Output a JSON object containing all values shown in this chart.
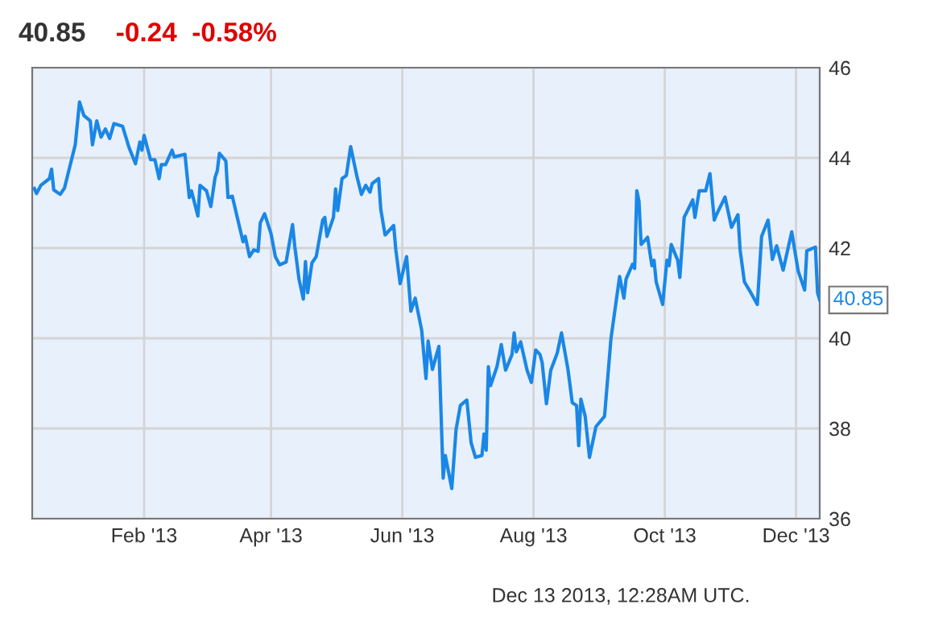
{
  "chart_data": {
    "type": "line",
    "title": "40.85",
    "subtitle": "-0.24  -0.58%",
    "x": [
      "2012-12-12",
      "2012-12-13",
      "2012-12-15",
      "2012-12-19",
      "2012-12-20",
      "2012-12-21",
      "2012-12-24",
      "2012-12-26",
      "2012-12-31",
      "2013-01-02",
      "2013-01-04",
      "2013-01-07",
      "2013-01-08",
      "2013-01-10",
      "2013-01-12",
      "2013-01-14",
      "2013-01-16",
      "2013-01-18",
      "2013-01-22",
      "2013-01-25",
      "2013-01-28",
      "2013-01-30",
      "2013-01-31",
      "2013-02-01",
      "2013-02-04",
      "2013-02-06",
      "2013-02-08",
      "2013-02-09",
      "2013-02-11",
      "2013-02-14",
      "2013-02-15",
      "2013-02-20",
      "2013-02-22",
      "2013-02-23",
      "2013-02-26",
      "2013-02-27",
      "2013-03-02",
      "2013-03-04",
      "2013-03-06",
      "2013-03-07",
      "2013-03-08",
      "2013-03-11",
      "2013-03-12",
      "2013-03-14",
      "2013-03-16",
      "2013-03-19",
      "2013-03-20",
      "2013-03-22",
      "2013-03-24",
      "2013-03-26",
      "2013-03-27",
      "2013-03-29",
      "2013-04-01",
      "2013-04-03",
      "2013-04-05",
      "2013-04-08",
      "2013-04-11",
      "2013-04-12",
      "2013-04-14",
      "2013-04-16",
      "2013-04-17",
      "2013-04-18",
      "2013-04-20",
      "2013-04-22",
      "2013-04-25",
      "2013-04-26",
      "2013-04-27",
      "2013-04-30",
      "2013-05-01",
      "2013-05-02",
      "2013-05-04",
      "2013-05-06",
      "2013-05-08",
      "2013-05-11",
      "2013-05-13",
      "2013-05-15",
      "2013-05-17",
      "2013-05-18",
      "2013-05-21",
      "2013-05-22",
      "2013-05-24",
      "2013-05-28",
      "2013-05-29",
      "2013-05-31",
      "2013-06-02",
      "2013-06-03",
      "2013-06-05",
      "2013-06-07",
      "2013-06-10",
      "2013-06-12",
      "2013-06-13",
      "2013-06-15",
      "2013-06-18",
      "2013-06-20",
      "2013-06-21",
      "2013-06-24",
      "2013-06-26",
      "2013-06-28",
      "2013-07-01",
      "2013-07-03",
      "2013-07-05",
      "2013-07-08",
      "2013-07-09",
      "2013-07-10",
      "2013-07-11",
      "2013-07-12",
      "2013-07-15",
      "2013-07-17",
      "2013-07-19",
      "2013-07-22",
      "2013-07-23",
      "2013-07-24",
      "2013-07-26",
      "2013-07-29",
      "2013-07-31",
      "2013-08-02",
      "2013-08-04",
      "2013-08-05",
      "2013-08-07",
      "2013-08-09",
      "2013-08-12",
      "2013-08-14",
      "2013-08-17",
      "2013-08-19",
      "2013-08-21",
      "2013-08-22",
      "2013-08-23",
      "2013-08-25",
      "2013-08-27",
      "2013-08-30",
      "2013-09-03",
      "2013-09-06",
      "2013-09-10",
      "2013-09-12",
      "2013-09-13",
      "2013-09-16",
      "2013-09-17",
      "2013-09-18",
      "2013-09-19",
      "2013-09-20",
      "2013-09-23",
      "2013-09-25",
      "2013-09-26",
      "2013-09-27",
      "2013-09-30",
      "2013-10-02",
      "2013-10-03",
      "2013-10-04",
      "2013-10-07",
      "2013-10-08",
      "2013-10-10",
      "2013-10-14",
      "2013-10-15",
      "2013-10-17",
      "2013-10-20",
      "2013-10-22",
      "2013-10-24",
      "2013-10-25",
      "2013-10-29",
      "2013-11-01",
      "2013-11-04",
      "2013-11-05",
      "2013-11-07",
      "2013-11-10",
      "2013-11-13",
      "2013-11-15",
      "2013-11-18",
      "2013-11-20",
      "2013-11-22",
      "2013-11-25",
      "2013-11-29",
      "2013-12-02",
      "2013-12-05",
      "2013-12-06",
      "2013-12-10",
      "2013-12-11",
      "2013-12-12"
    ],
    "series": [
      {
        "color": "#1a87e6",
        "values": [
          43.32,
          43.21,
          43.39,
          43.54,
          43.75,
          43.29,
          43.19,
          43.33,
          44.29,
          45.24,
          44.94,
          44.82,
          44.29,
          44.82,
          44.46,
          44.64,
          44.43,
          44.76,
          44.7,
          44.23,
          43.87,
          44.35,
          44.17,
          44.5,
          43.96,
          43.96,
          43.54,
          43.85,
          43.85,
          44.17,
          44.02,
          44.08,
          43.12,
          43.27,
          42.71,
          43.39,
          43.27,
          42.92,
          43.57,
          43.71,
          44.1,
          43.93,
          43.12,
          43.15,
          42.74,
          42.14,
          42.26,
          41.81,
          41.96,
          41.93,
          42.56,
          42.76,
          42.32,
          41.81,
          41.63,
          41.69,
          42.52,
          42.05,
          41.31,
          40.87,
          41.7,
          41.01,
          41.67,
          41.81,
          42.62,
          42.68,
          42.26,
          42.68,
          43.31,
          42.83,
          43.54,
          43.61,
          44.25,
          43.57,
          43.19,
          43.39,
          43.24,
          43.43,
          43.54,
          42.86,
          42.29,
          42.5,
          41.96,
          41.21,
          41.61,
          41.81,
          40.6,
          40.89,
          40.18,
          39.11,
          39.94,
          39.31,
          39.82,
          36.9,
          37.4,
          36.67,
          37.98,
          38.51,
          38.63,
          37.68,
          37.36,
          37.4,
          37.88,
          37.52,
          39.37,
          38.95,
          39.37,
          39.86,
          39.29,
          39.64,
          40.12,
          39.7,
          39.92,
          39.29,
          39.02,
          39.74,
          39.64,
          39.46,
          38.55,
          39.29,
          39.67,
          40.12,
          39.31,
          38.57,
          38.51,
          37.62,
          38.65,
          38.27,
          37.36,
          38.04,
          38.27,
          40.0,
          41.37,
          40.89,
          41.31,
          41.64,
          41.55,
          43.27,
          43.04,
          42.08,
          42.24,
          41.61,
          41.73,
          41.25,
          40.75,
          41.73,
          41.61,
          42.08,
          41.73,
          41.35,
          42.68,
          43.07,
          42.68,
          43.27,
          43.27,
          43.65,
          42.62,
          42.74,
          43.13,
          42.46,
          42.74,
          41.96,
          41.25,
          41.01,
          40.75,
          42.26,
          42.62,
          41.75,
          42.05,
          41.51,
          42.36,
          41.49,
          41.07,
          41.94,
          42.02,
          41.01,
          40.85
        ]
      }
    ],
    "xlim": [
      "2012-12-11",
      "2013-12-12"
    ],
    "xticks": [
      {
        "value": "2013-02-01",
        "label": "Feb '13"
      },
      {
        "value": "2013-04-01",
        "label": "Apr '13"
      },
      {
        "value": "2013-06-01",
        "label": "Jun '13"
      },
      {
        "value": "2013-08-01",
        "label": "Aug '13"
      },
      {
        "value": "2013-10-01",
        "label": "Oct '13"
      },
      {
        "value": "2013-12-01",
        "label": "Dec '13"
      }
    ],
    "ylim": [
      36,
      46
    ],
    "yticks": [
      36,
      38,
      40,
      42,
      44,
      46
    ],
    "grid": true,
    "marker": "none",
    "line_style": "solid",
    "annotations": [
      {
        "text": "40.85",
        "x": "2013-12-12",
        "y": 40.85
      },
      "Dec 13 2013, 12:28AM UTC."
    ]
  }
}
